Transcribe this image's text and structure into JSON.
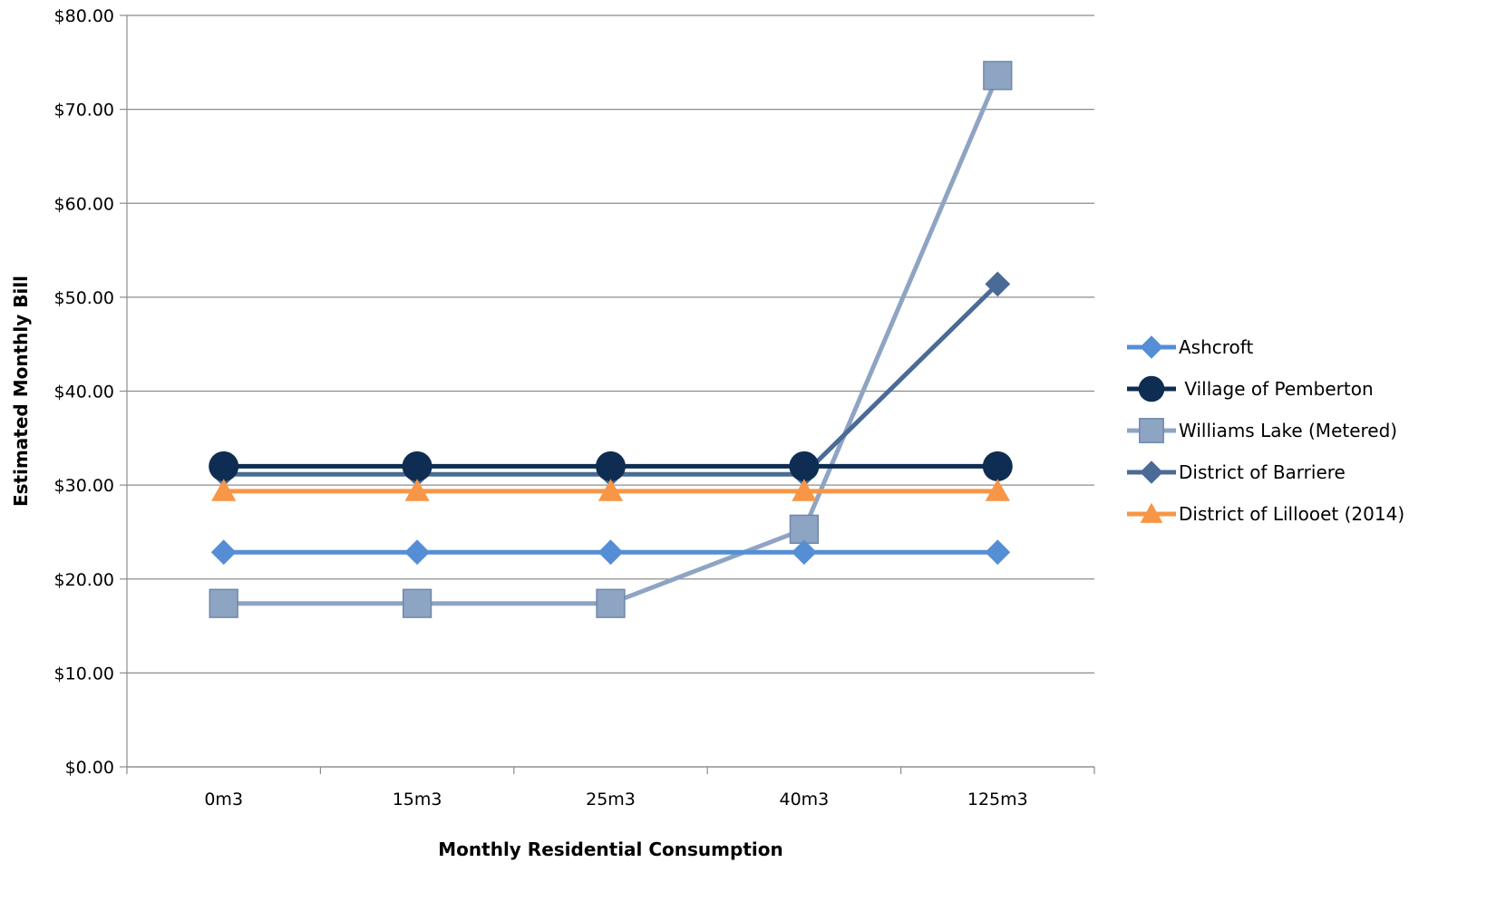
{
  "chart_data": {
    "type": "line",
    "xlabel": "Monthly Residential Consumption",
    "ylabel": "Estimated Monthly Bill",
    "categories": [
      "0m3",
      "15m3",
      "25m3",
      "40m3",
      "125m3"
    ],
    "ylim": [
      0,
      80
    ],
    "yticks": [
      "$0.00",
      "$10.00",
      "$20.00",
      "$30.00",
      "$40.00",
      "$50.00",
      "$60.00",
      "$70.00",
      "$80.00"
    ],
    "grid": true,
    "legend_position": "right",
    "series": [
      {
        "name": "Ashcroft",
        "values": [
          22.85,
          22.85,
          22.85,
          22.85,
          22.85
        ],
        "color": "#558ed5",
        "marker": "diamond"
      },
      {
        "name": " Village of Pemberton",
        "values": [
          32.0,
          32.0,
          32.0,
          32.0,
          32.0
        ],
        "color": "#0f2d52",
        "marker": "circle"
      },
      {
        "name": "Williams Lake (Metered)",
        "values": [
          17.4,
          17.4,
          17.4,
          25.3,
          73.6
        ],
        "color": "#8ea4c3",
        "marker": "square"
      },
      {
        "name": "District of Barriere",
        "values": [
          31.15,
          31.15,
          31.15,
          31.15,
          51.4
        ],
        "color": "#4a6b96",
        "marker": "diamond"
      },
      {
        "name": "District of Lillooet (2014)",
        "values": [
          29.35,
          29.35,
          29.35,
          29.35,
          29.35
        ],
        "color": "#f79646",
        "marker": "triangle"
      }
    ]
  }
}
